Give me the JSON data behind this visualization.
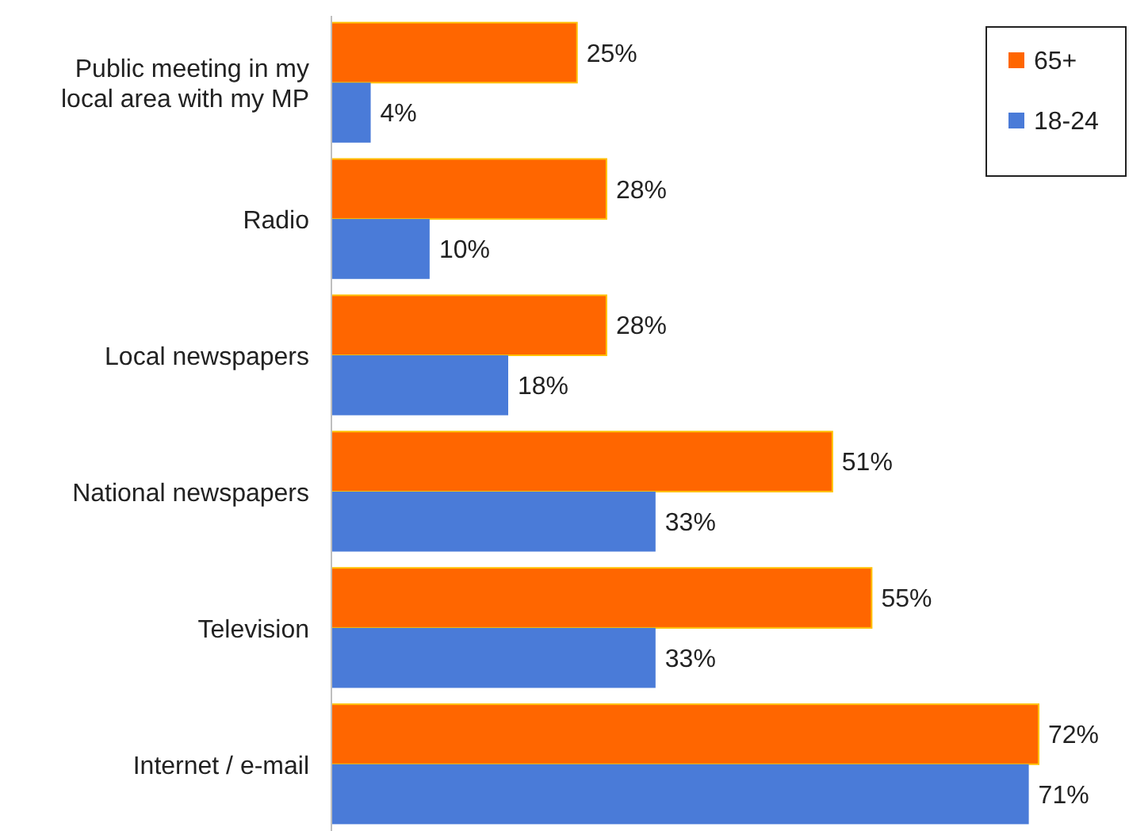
{
  "chart_data": {
    "type": "bar",
    "orientation": "horizontal",
    "categories": [
      "Public meeting in my local area with my MP",
      "Radio",
      "Local newspapers",
      "National newspapers",
      "Television",
      "Internet / e-mail"
    ],
    "series": [
      {
        "name": "65+",
        "color": "#ff6600",
        "values": [
          25,
          28,
          28,
          51,
          55,
          72
        ],
        "value_labels": [
          "25%",
          "28%",
          "28%",
          "51%",
          "55%",
          "72%"
        ]
      },
      {
        "name": "18-24",
        "color": "#4a7bd8",
        "values": [
          4,
          10,
          18,
          33,
          33,
          71
        ],
        "value_labels": [
          "4%",
          "10%",
          "18%",
          "33%",
          "33%",
          "71%"
        ]
      }
    ],
    "legend": "top right"
  }
}
